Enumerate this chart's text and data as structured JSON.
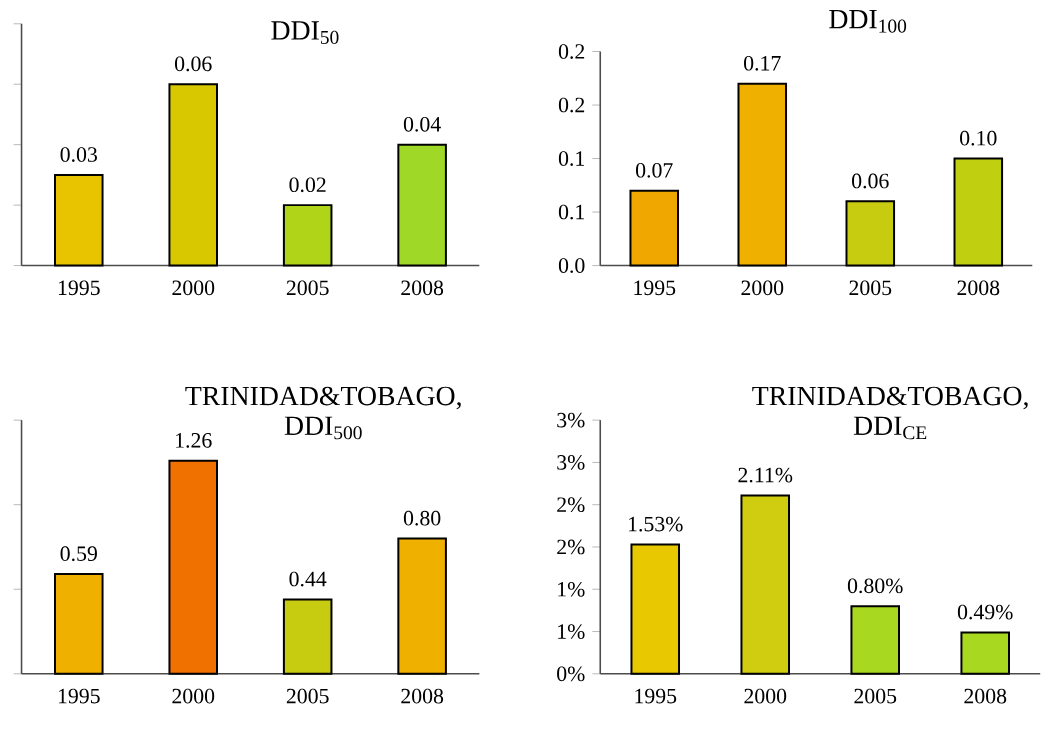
{
  "chart_data": [
    {
      "type": "bar",
      "title": "DDI$_{50}$",
      "categories": [
        "1995",
        "2000",
        "2005",
        "2008"
      ],
      "values": [
        0.03,
        0.06,
        0.02,
        0.04
      ],
      "value_labels": [
        "0.03",
        "0.06",
        "0.02",
        "0.04"
      ],
      "colors": [
        "#e8c400",
        "#d8c800",
        "#b0d418",
        "#a0d828"
      ],
      "ylim": [
        0,
        0.08
      ],
      "yticks": [
        {
          "value": 0,
          "label": null
        },
        {
          "value": 0.02,
          "label": null
        },
        {
          "value": 0.04,
          "label": null
        },
        {
          "value": 0.06,
          "label": null
        },
        {
          "value": 0.08,
          "label": null
        }
      ],
      "tick_labels": "x"
    },
    {
      "type": "bar",
      "title": "DDI$_{100}$",
      "categories": [
        "1995",
        "2000",
        "2005",
        "2008"
      ],
      "values": [
        0.07,
        0.17,
        0.06,
        0.1
      ],
      "value_labels": [
        "0.07",
        "0.17",
        "0.06",
        "0.10"
      ],
      "colors": [
        "#f0a800",
        "#f0b000",
        "#c8cc10",
        "#c0d010"
      ],
      "ylim": [
        0,
        0.2
      ],
      "yticks": [
        {
          "value": 0,
          "label": "0.0"
        },
        {
          "value": 0.05,
          "label": "0.1"
        },
        0.1,
        {
          "value": 0.15,
          "label": "0.2"
        },
        0.2
      ]
    },
    {
      "type": "bar",
      "title": "TRINIDAD&TOBAGO, DDI$_{500}$",
      "categories": [
        "1995",
        "2000",
        "2005",
        "2008"
      ],
      "values": [
        0.59,
        1.26,
        0.44,
        0.8
      ],
      "value_labels": [
        "0.59",
        "1.26",
        "0.44",
        "0.80"
      ],
      "colors": [
        "#f0b000",
        "#f07000",
        "#c8cc10",
        "#f0b000"
      ],
      "ylim": [
        0,
        1.5
      ],
      "yticks": [
        {
          "value": 0,
          "label": null
        },
        {
          "value": 0.5,
          "label": null
        },
        {
          "value": 1,
          "label": null
        },
        {
          "value": 1.5,
          "label": null
        }
      ],
      "tick_labels": "x"
    },
    {
      "type": "bar",
      "title": "TRINIDAD&TOBAGO, DDI$_{CE}$",
      "categories": [
        "1995",
        "2000",
        "2005",
        "2008"
      ],
      "values": [
        1.53,
        2.11,
        0.8,
        0.49
      ],
      "value_labels": [
        "1.53%",
        "2.11%",
        "0.80%",
        "0.49%"
      ],
      "colors": [
        "#e8c800",
        "#d0cc10",
        "#a8d820",
        "#a8d820"
      ],
      "ylim": [
        0,
        3
      ],
      "yticks": [
        {
          "value": 0,
          "label": "0%"
        },
        {
          "value": 0.5,
          "label": "1%"
        },
        {
          "value": 1,
          "label": "1%"
        },
        {
          "value": 1.5,
          "label": "2%"
        },
        {
          "value": 2,
          "label": "2%"
        },
        {
          "value": 2.5,
          "label": "3%"
        },
        {
          "value": 3,
          "label": "3%"
        }
      ]
    }
  ]
}
